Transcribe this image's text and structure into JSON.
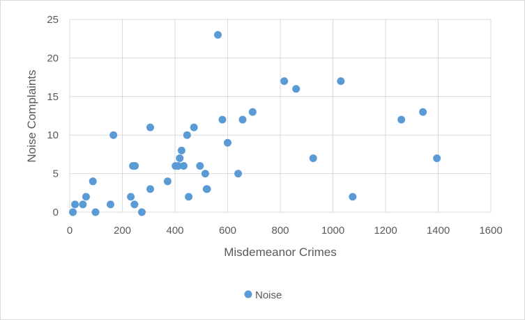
{
  "chart_data": {
    "type": "scatter",
    "title": "",
    "xlabel": "Misdemeanor Crimes",
    "ylabel": "Noise Complaints",
    "xlim": [
      0,
      1600
    ],
    "ylim": [
      0,
      25
    ],
    "x_ticks": [
      0,
      200,
      400,
      600,
      800,
      1000,
      1200,
      1400,
      1600
    ],
    "y_ticks": [
      0,
      5,
      10,
      15,
      20,
      25
    ],
    "grid": true,
    "legend_position": "bottom",
    "series": [
      {
        "name": "Noise",
        "color": "#5b9bd5",
        "points": [
          [
            12,
            0
          ],
          [
            20,
            1
          ],
          [
            50,
            1
          ],
          [
            62,
            2
          ],
          [
            88,
            4
          ],
          [
            98,
            0
          ],
          [
            155,
            1
          ],
          [
            166,
            10
          ],
          [
            232,
            2
          ],
          [
            240,
            6
          ],
          [
            246,
            1
          ],
          [
            248,
            6
          ],
          [
            274,
            0
          ],
          [
            306,
            3
          ],
          [
            306,
            11
          ],
          [
            372,
            4
          ],
          [
            402,
            6
          ],
          [
            412,
            6
          ],
          [
            418,
            7
          ],
          [
            425,
            8
          ],
          [
            433,
            6
          ],
          [
            446,
            10
          ],
          [
            452,
            2
          ],
          [
            472,
            11
          ],
          [
            495,
            6
          ],
          [
            515,
            5
          ],
          [
            520,
            3
          ],
          [
            522,
            3
          ],
          [
            563,
            23
          ],
          [
            580,
            12
          ],
          [
            600,
            9
          ],
          [
            640,
            5
          ],
          [
            657,
            12
          ],
          [
            695,
            13
          ],
          [
            815,
            17
          ],
          [
            860,
            16
          ],
          [
            925,
            7
          ],
          [
            1030,
            17
          ],
          [
            1075,
            2
          ],
          [
            1260,
            12
          ],
          [
            1342,
            13
          ],
          [
            1395,
            7
          ]
        ]
      }
    ]
  }
}
